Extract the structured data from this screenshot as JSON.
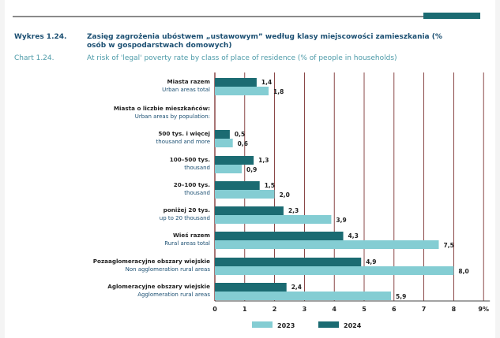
{
  "title": {
    "pl_number": "Wykres 1.24.",
    "pl_text": "Zasięg zagrożenia ubóstwem „ustawowym” według klasy miejscowości zamieszkania (% osób w gospodarstwach domowych)",
    "en_number": "Chart 1.24.",
    "en_text": "At risk of 'legal' poverty rate by class of place of residence (% of people in households)"
  },
  "colors": {
    "series_2023": "#84cdd3",
    "series_2024": "#1b6b72",
    "title_pl": "#1b4f72",
    "title_en": "#4c9aa8",
    "grid": "#6d1a1a"
  },
  "chart_data": {
    "type": "bar",
    "orientation": "horizontal",
    "title": "Zasięg zagrożenia ubóstwem „ustawowym” według klasy miejscowości zamieszkania (% osób w gospodarstwach domowych)",
    "subtitle": "At risk of 'legal' poverty rate by class of place of residence (% of people in households)",
    "categories": [
      {
        "pl": "Miasta razem",
        "en": "Urban areas total"
      },
      {
        "pl": "Miasta o liczbie mieszkańców:",
        "en": "Urban areas by population:"
      },
      {
        "pl": "500 tys. i więcej",
        "en": "thousand and more"
      },
      {
        "pl": "100–500 tys.",
        "en": "thousand"
      },
      {
        "pl": "20–100 tys.",
        "en": "thousand"
      },
      {
        "pl": "poniżej 20 tys.",
        "en": "up to 20 thousand"
      },
      {
        "pl": "Wieś razem",
        "en": "Rural areas total"
      },
      {
        "pl": "Pozaaglomeracyjne obszary wiejskie",
        "en": "Non agglomeration rural areas"
      },
      {
        "pl": "Aglomeracyjne obszary wiejskie",
        "en": "Agglomeration rural areas"
      }
    ],
    "bold_categories": [
      0,
      1,
      2,
      3,
      4,
      5,
      6,
      7,
      8
    ],
    "series": [
      {
        "name": "2024",
        "values": [
          1.4,
          null,
          0.5,
          1.3,
          1.5,
          2.3,
          4.3,
          4.9,
          2.4
        ],
        "labels": [
          "1,4",
          "",
          "0,5",
          "1,3",
          "1,5",
          "2,3",
          "4,3",
          "4,9",
          "2,4"
        ]
      },
      {
        "name": "2023",
        "values": [
          1.8,
          null,
          0.6,
          0.9,
          2.0,
          3.9,
          7.5,
          8.0,
          5.9
        ],
        "labels": [
          "1,8",
          "",
          "0,6",
          "0,9",
          "2,0",
          "3,9",
          "7,5",
          "8,0",
          "5,9"
        ]
      }
    ],
    "xlim": [
      0,
      9
    ],
    "x_ticks": [
      "0",
      "1",
      "2",
      "3",
      "4",
      "5",
      "6",
      "7",
      "8",
      "9%"
    ],
    "grid": true,
    "legend_position": "bottom"
  }
}
